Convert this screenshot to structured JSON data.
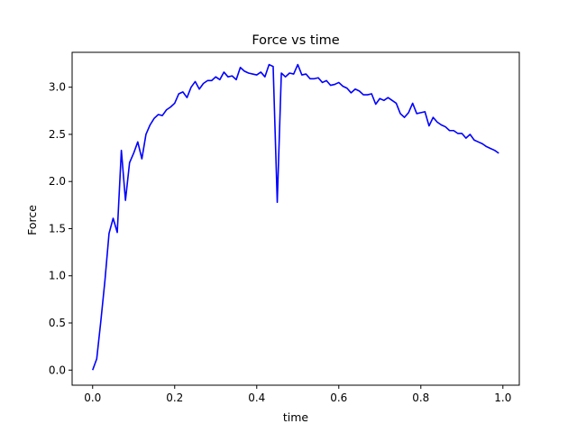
{
  "chart_data": {
    "type": "line",
    "title": "Force vs time",
    "xlabel": "time",
    "ylabel": "Force",
    "xlim": [
      -0.05,
      1.04
    ],
    "ylim": [
      -0.16,
      3.37
    ],
    "xticks": [
      0.0,
      0.2,
      0.4,
      0.6,
      0.8,
      1.0
    ],
    "xtick_labels": [
      "0.0",
      "0.2",
      "0.4",
      "0.6",
      "0.8",
      "1.0"
    ],
    "yticks": [
      0.0,
      0.5,
      1.0,
      1.5,
      2.0,
      2.5,
      3.0
    ],
    "ytick_labels": [
      "0.0",
      "0.5",
      "1.0",
      "1.5",
      "2.0",
      "2.5",
      "3.0"
    ],
    "grid": false,
    "series": [
      {
        "color": "#0000ff",
        "x": [
          0.0,
          0.01,
          0.02,
          0.03,
          0.04,
          0.05,
          0.06,
          0.07,
          0.08,
          0.09,
          0.1,
          0.11,
          0.12,
          0.13,
          0.14,
          0.15,
          0.16,
          0.17,
          0.18,
          0.19,
          0.2,
          0.21,
          0.22,
          0.23,
          0.24,
          0.25,
          0.26,
          0.27,
          0.28,
          0.29,
          0.3,
          0.31,
          0.32,
          0.33,
          0.34,
          0.35,
          0.36,
          0.37,
          0.38,
          0.39,
          0.4,
          0.41,
          0.42,
          0.43,
          0.44,
          0.45,
          0.46,
          0.47,
          0.48,
          0.49,
          0.5,
          0.51,
          0.52,
          0.53,
          0.54,
          0.55,
          0.56,
          0.57,
          0.58,
          0.59,
          0.6,
          0.61,
          0.62,
          0.63,
          0.64,
          0.65,
          0.66,
          0.67,
          0.68,
          0.69,
          0.7,
          0.71,
          0.72,
          0.73,
          0.74,
          0.75,
          0.76,
          0.77,
          0.78,
          0.79,
          0.8,
          0.81,
          0.82,
          0.83,
          0.84,
          0.85,
          0.86,
          0.87,
          0.88,
          0.89,
          0.9,
          0.91,
          0.92,
          0.93,
          0.94,
          0.95,
          0.96,
          0.97,
          0.98,
          0.99
        ],
        "y": [
          0.0,
          0.12,
          0.52,
          0.95,
          1.45,
          1.61,
          1.46,
          2.33,
          1.8,
          2.2,
          2.3,
          2.42,
          2.24,
          2.5,
          2.6,
          2.67,
          2.71,
          2.7,
          2.76,
          2.79,
          2.83,
          2.93,
          2.95,
          2.89,
          3.0,
          3.06,
          2.98,
          3.04,
          3.07,
          3.07,
          3.11,
          3.08,
          3.16,
          3.11,
          3.12,
          3.08,
          3.21,
          3.17,
          3.15,
          3.14,
          3.13,
          3.16,
          3.11,
          3.24,
          3.22,
          1.78,
          3.15,
          3.11,
          3.15,
          3.14,
          3.24,
          3.13,
          3.14,
          3.09,
          3.09,
          3.1,
          3.05,
          3.07,
          3.02,
          3.03,
          3.05,
          3.01,
          2.99,
          2.94,
          2.98,
          2.96,
          2.92,
          2.92,
          2.93,
          2.82,
          2.88,
          2.86,
          2.89,
          2.86,
          2.83,
          2.72,
          2.68,
          2.73,
          2.83,
          2.72,
          2.73,
          2.74,
          2.59,
          2.68,
          2.63,
          2.6,
          2.58,
          2.54,
          2.54,
          2.51,
          2.51,
          2.46,
          2.5,
          2.44,
          2.42,
          2.4,
          2.37,
          2.35,
          2.33,
          2.3
        ]
      }
    ]
  }
}
